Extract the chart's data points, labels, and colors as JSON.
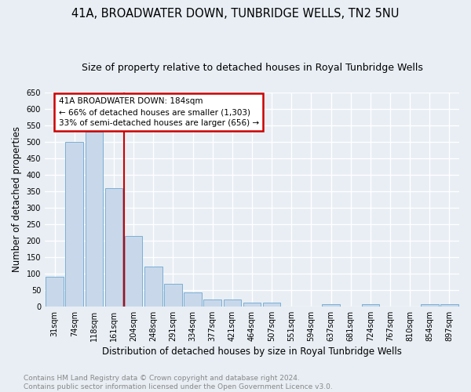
{
  "title": "41A, BROADWATER DOWN, TUNBRIDGE WELLS, TN2 5NU",
  "subtitle": "Size of property relative to detached houses in Royal Tunbridge Wells",
  "xlabel": "Distribution of detached houses by size in Royal Tunbridge Wells",
  "ylabel": "Number of detached properties",
  "categories": [
    "31sqm",
    "74sqm",
    "118sqm",
    "161sqm",
    "204sqm",
    "248sqm",
    "291sqm",
    "334sqm",
    "377sqm",
    "421sqm",
    "464sqm",
    "507sqm",
    "551sqm",
    "594sqm",
    "637sqm",
    "681sqm",
    "724sqm",
    "767sqm",
    "810sqm",
    "854sqm",
    "897sqm"
  ],
  "values": [
    90,
    500,
    530,
    358,
    213,
    122,
    68,
    42,
    20,
    20,
    12,
    12,
    0,
    0,
    6,
    0,
    6,
    0,
    0,
    6,
    6
  ],
  "bar_color": "#c8d8ea",
  "bar_edge_color": "#7bafd4",
  "vline_x": 3.5,
  "vline_color": "#cc0000",
  "annotation_text": "41A BROADWATER DOWN: 184sqm\n← 66% of detached houses are smaller (1,303)\n33% of semi-detached houses are larger (656) →",
  "annotation_box_color": "#cc0000",
  "annotation_bg": "white",
  "ylim": [
    0,
    650
  ],
  "yticks": [
    0,
    50,
    100,
    150,
    200,
    250,
    300,
    350,
    400,
    450,
    500,
    550,
    600,
    650
  ],
  "footer_text": "Contains HM Land Registry data © Crown copyright and database right 2024.\nContains public sector information licensed under the Open Government Licence v3.0.",
  "background_color": "#e8eef4",
  "grid_color": "white",
  "title_fontsize": 10.5,
  "subtitle_fontsize": 9,
  "tick_fontsize": 7,
  "ylabel_fontsize": 8.5,
  "xlabel_fontsize": 8.5,
  "footer_fontsize": 6.5
}
